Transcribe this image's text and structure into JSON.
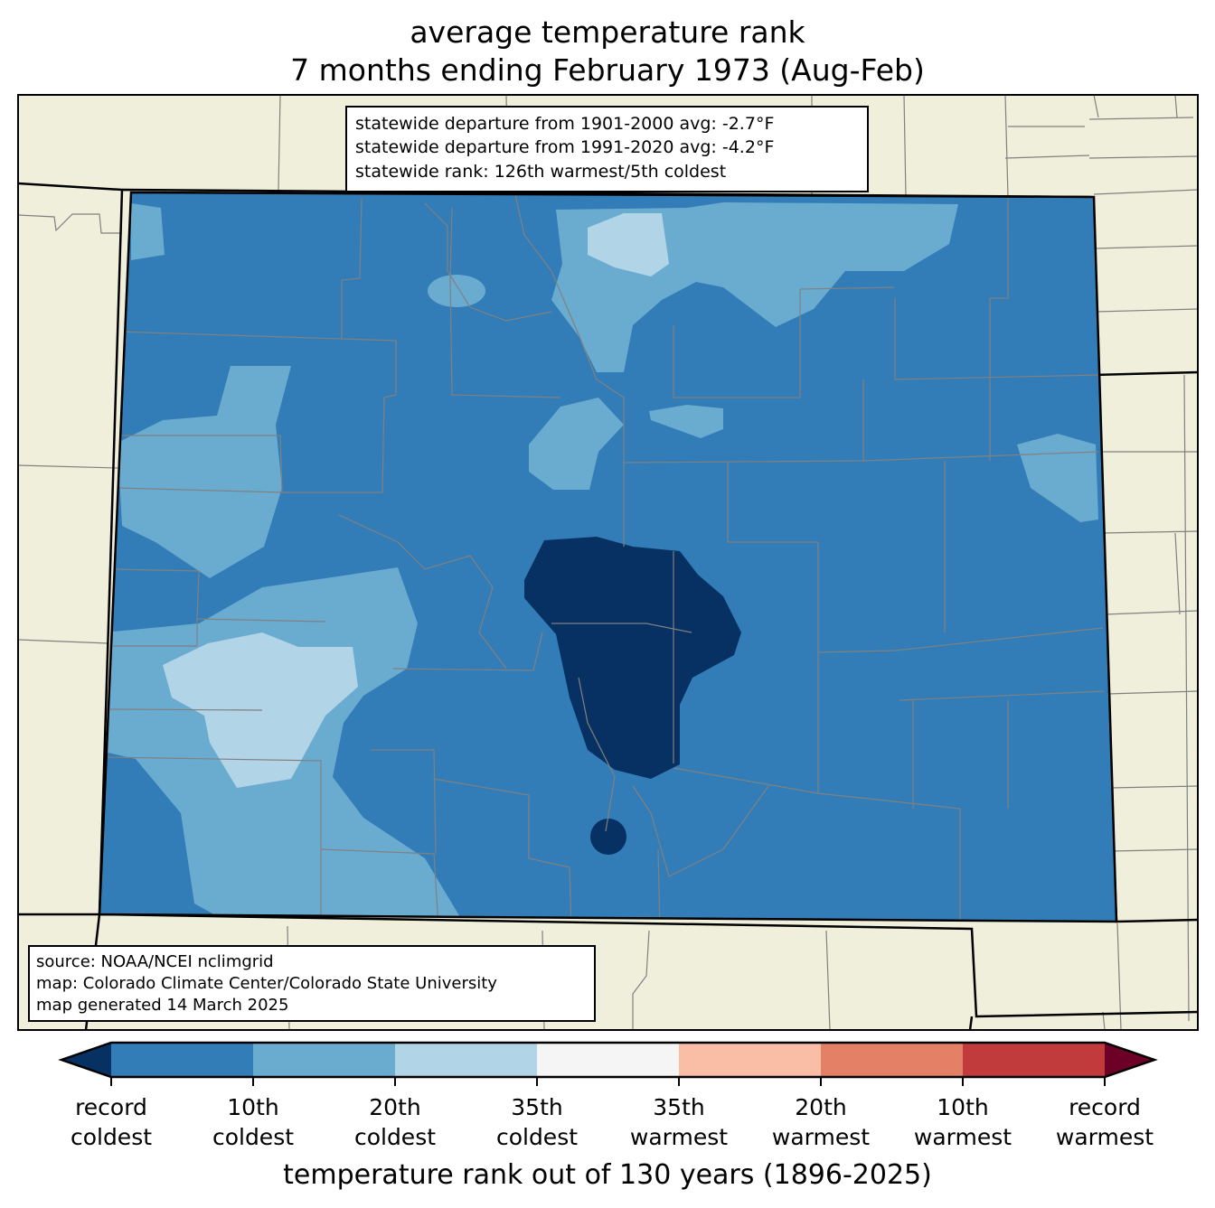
{
  "title": {
    "line1": "average temperature rank",
    "line2": "7 months ending February 1973 (Aug-Feb)"
  },
  "stats_box": {
    "line1": "statewide departure from 1901-2000 avg: -2.7°F",
    "line2": "statewide departure from 1991-2020 avg: -4.2°F",
    "line3": "statewide rank: 126th warmest/5th coldest"
  },
  "source_box": {
    "line1": "source: NOAA/NCEI nclimgrid",
    "line2": "map: Colorado Climate Center/Colorado State University",
    "line3": "map generated 14 March 2025"
  },
  "colorbar": {
    "title": "temperature rank out of 130 years (1896-2025)",
    "colors": {
      "record_coldest": "#083163",
      "c10": "#327db7",
      "c20": "#6aacd0",
      "c35": "#b2d4e7",
      "neutral": "#f5f5f5",
      "w35": "#f9bea5",
      "w20": "#e48066",
      "w10": "#c13b3c",
      "record_warmest": "#6d0026"
    },
    "ticks": [
      {
        "line1": "record",
        "line2": "coldest"
      },
      {
        "line1": "10th",
        "line2": "coldest"
      },
      {
        "line1": "20th",
        "line2": "coldest"
      },
      {
        "line1": "35th",
        "line2": "coldest"
      },
      {
        "line1": "35th",
        "line2": "warmest"
      },
      {
        "line1": "20th",
        "line2": "warmest"
      },
      {
        "line1": "10th",
        "line2": "warmest"
      },
      {
        "line1": "record",
        "line2": "warmest"
      }
    ]
  },
  "map": {
    "land_color": "#f0efdc",
    "region": "Colorado"
  }
}
